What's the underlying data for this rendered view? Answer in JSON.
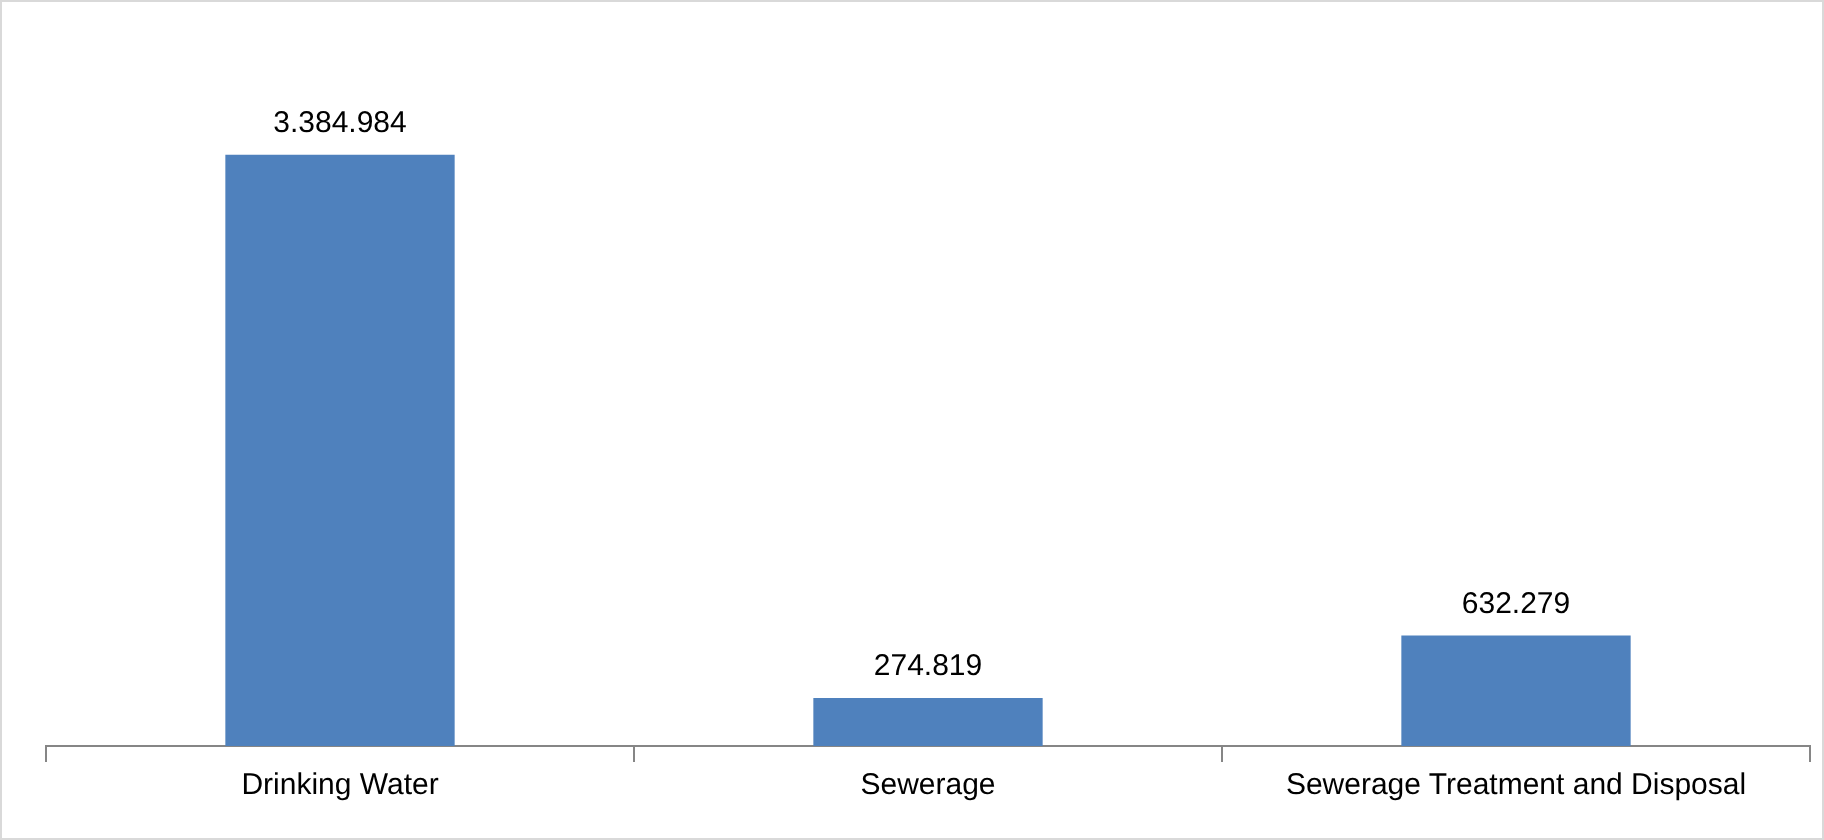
{
  "chart_data": {
    "type": "bar",
    "categories": [
      "Drinking Water",
      "Sewerage",
      "Sewerage Treatment and Disposal"
    ],
    "values": [
      3384984,
      274819,
      632279
    ],
    "color": "#4f81bd",
    "value_labels": [
      "3.384.984",
      "274.819",
      "632.279"
    ],
    "grid": false,
    "legend": false
  }
}
